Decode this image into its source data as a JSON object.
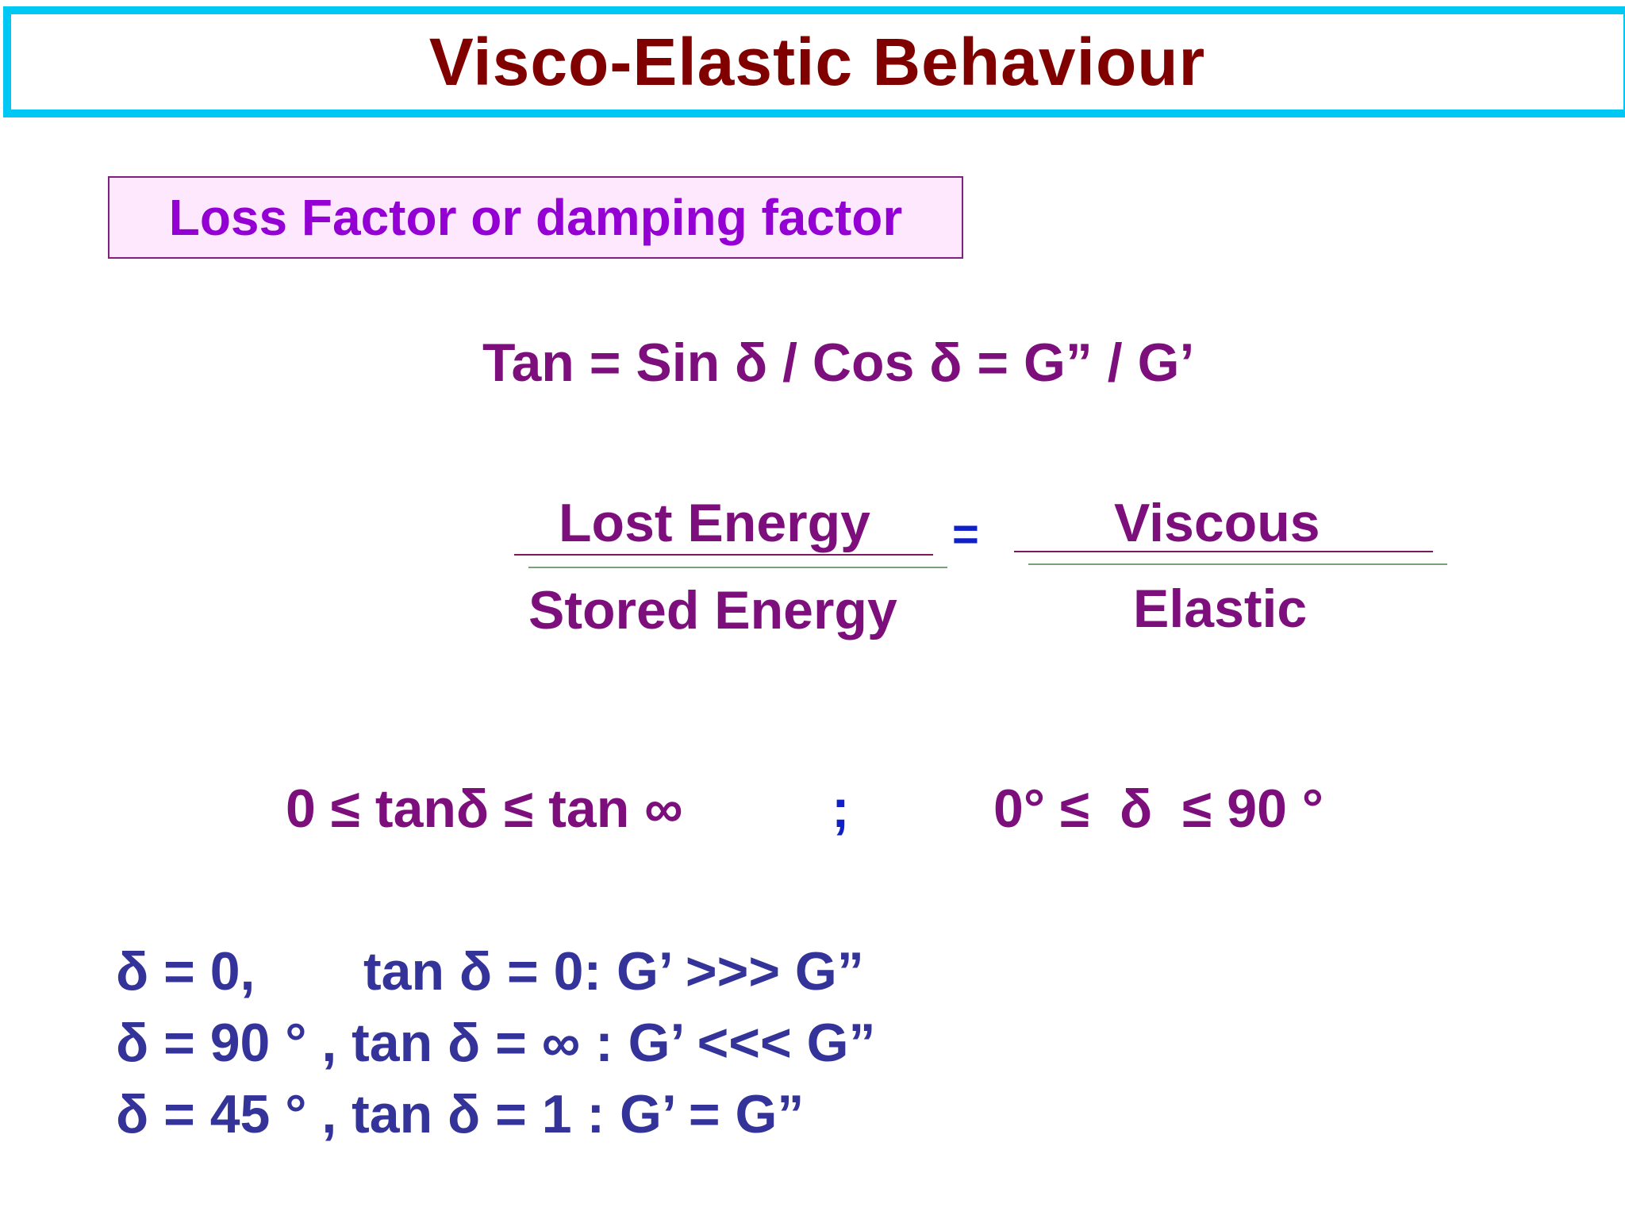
{
  "title": "Visco-Elastic Behaviour",
  "subtitle": "Loss Factor or damping factor",
  "formula_tan": "Tan = Sin δ / Cos δ = G” / G’",
  "ratio": {
    "left_numerator": "Lost Energy",
    "left_denominator": "Stored Energy",
    "equals": "=",
    "right_numerator": "Viscous",
    "right_denominator": "Elastic"
  },
  "range": {
    "tan_range": "0 ≤ tanδ ≤ tan ∞",
    "separator": ";",
    "angle_range": "0° ≤  δ  ≤ 90 °"
  },
  "cases": {
    "case1_delta": "δ = 0,",
    "case1_result": "tan δ = 0: G’ >>> G”",
    "case2": "δ = 90 ° , tan δ = ∞ : G’ <<< G”",
    "case3": "δ = 45 ° , tan δ = 1 : G’ = G”"
  },
  "colors": {
    "title": "#800000",
    "title_border": "#00c8f5",
    "subtitle_text": "#9400d3",
    "subtitle_bg": "#fde8fd",
    "formula": "#7c0f7c",
    "cases": "#333399",
    "equals": "#1020c8"
  }
}
